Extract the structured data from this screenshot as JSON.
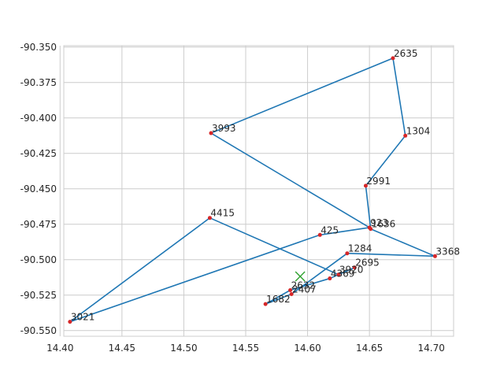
{
  "chart_data": {
    "type": "line",
    "title": "",
    "xlabel": "",
    "ylabel": "",
    "xlim": [
      14.403,
      14.718
    ],
    "ylim": [
      -90.554,
      -90.349
    ],
    "x_ticks": [
      "14.40",
      "14.45",
      "14.50",
      "14.55",
      "14.60",
      "14.65",
      "14.70"
    ],
    "y_ticks": [
      "-90.350",
      "-90.375",
      "-90.400",
      "-90.425",
      "-90.450",
      "-90.475",
      "-90.500",
      "-90.525",
      "-90.550"
    ],
    "grid": true,
    "colors": {
      "line": "#1f77b4",
      "point": "#d62728",
      "marker": "#2ca02c",
      "grid": "#cccccc",
      "axes": "#cccccc"
    },
    "route": [
      {
        "label": "3021",
        "x": 14.408,
        "y": -90.5438
      },
      {
        "label": "4415",
        "x": 14.521,
        "y": -90.4705
      },
      {
        "label": "3920",
        "x": 14.625,
        "y": -90.5105
      },
      {
        "label": "2695",
        "x": 14.638,
        "y": -90.5055
      },
      {
        "label": "4369",
        "x": 14.618,
        "y": -90.5132
      },
      {
        "label": "2632",
        "x": 14.586,
        "y": -90.5215
      },
      {
        "label": "1682",
        "x": 14.566,
        "y": -90.5313
      },
      {
        "label": "2407",
        "x": 14.587,
        "y": -90.5243
      },
      {
        "label": "1284",
        "x": 14.632,
        "y": -90.4955
      },
      {
        "label": "3368",
        "x": 14.703,
        "y": -90.4975
      },
      {
        "label": "1636",
        "x": 14.651,
        "y": -90.4783
      },
      {
        "label": "2991",
        "x": 14.647,
        "y": -90.4478
      },
      {
        "label": "1304",
        "x": 14.679,
        "y": -90.4125
      },
      {
        "label": "2635",
        "x": 14.669,
        "y": -90.3578
      },
      {
        "label": "3993",
        "x": 14.522,
        "y": -90.4107
      },
      {
        "label": "923",
        "x": 14.65,
        "y": -90.4773
      },
      {
        "label": "425",
        "x": 14.61,
        "y": -90.4825
      },
      {
        "label": "3021",
        "x": 14.408,
        "y": -90.5438
      }
    ],
    "marker": {
      "x": 14.594,
      "y": -90.5118,
      "symbol": "x"
    }
  }
}
